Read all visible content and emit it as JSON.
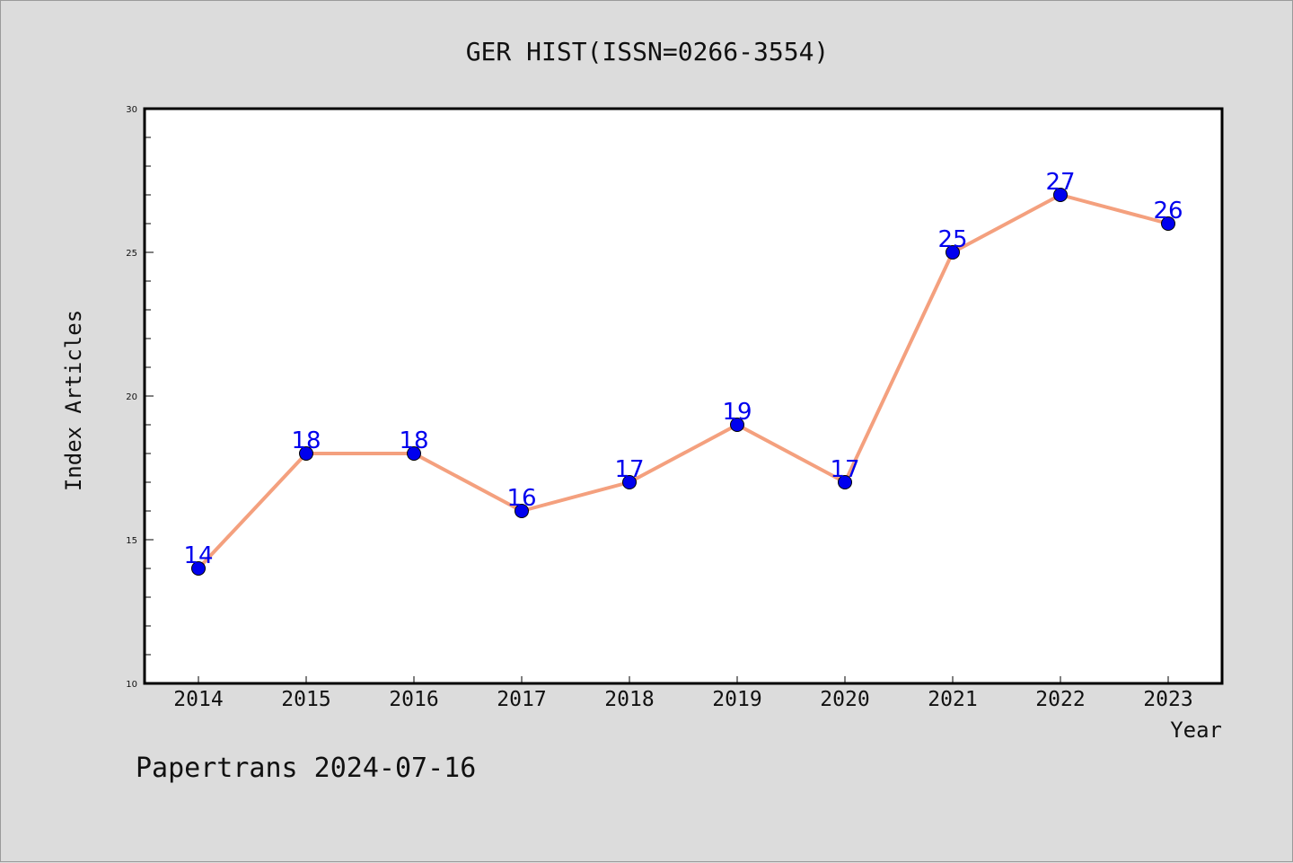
{
  "chart_data": {
    "type": "line",
    "title": "GER HIST(ISSN=0266-3554)",
    "xlabel": "Year",
    "ylabel": "Index Articles",
    "categories": [
      "2014",
      "2015",
      "2016",
      "2017",
      "2018",
      "2019",
      "2020",
      "2021",
      "2022",
      "2023"
    ],
    "series": [
      {
        "values": [
          14,
          18,
          18,
          16,
          17,
          19,
          17,
          25,
          27,
          26
        ]
      }
    ],
    "data_labels": [
      "14",
      "18",
      "18",
      "16",
      "17",
      "19",
      "17",
      "25",
      "27",
      "26"
    ],
    "ylim": [
      10,
      30
    ],
    "yticks": [
      "10",
      "15",
      "20",
      "25",
      "30"
    ],
    "grid": false,
    "line_color": "#f4a07e",
    "marker_color": "#0000ee",
    "label_color": "#0000ee"
  },
  "footer": "Papertrans 2024-07-16"
}
